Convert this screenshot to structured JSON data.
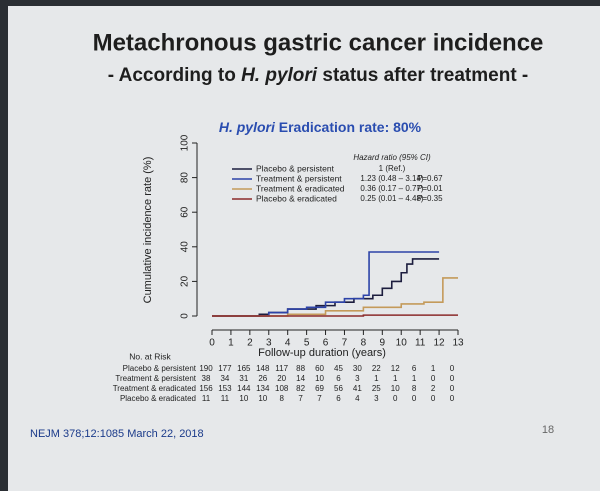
{
  "chart_data": {
    "type": "step",
    "title": "Metachronous gastric cancer incidence",
    "subtitle": [
      "- According to ",
      "H. pylori",
      " status after treatment -"
    ],
    "chart_title": [
      "H. pylori",
      " Eradication rate: 80%"
    ],
    "y_label": "Cumulative incidence rate (%)",
    "x_label": "Follow-up duration (years)",
    "xlim": [
      0,
      13
    ],
    "xticks": [
      0,
      1,
      2,
      3,
      4,
      5,
      6,
      7,
      8,
      9,
      10,
      11,
      12,
      13
    ],
    "ylim": [
      0,
      100
    ],
    "yticks": [
      0,
      20,
      40,
      60,
      80,
      100
    ],
    "grid": false,
    "hr_header": "Hazard ratio (95% CI)",
    "series": [
      {
        "name": "Placebo & persistent",
        "color": "#1c1d3e",
        "hr": "1 (Ref.)",
        "x": [
          0,
          2.5,
          2.5,
          3,
          3,
          4,
          4,
          5.5,
          5.5,
          6.5,
          6.5,
          7.5,
          7.5,
          8.5,
          8.5,
          9,
          9,
          9.5,
          9.5,
          10,
          10,
          10.3,
          10.3,
          10.6,
          10.6,
          12
        ],
        "values": [
          0,
          0,
          1,
          1,
          2,
          2,
          4,
          4,
          6,
          6,
          8,
          8,
          10,
          10,
          12,
          12,
          16,
          16,
          20,
          20,
          25,
          25,
          30,
          30,
          33,
          33
        ]
      },
      {
        "name": "Treatment & persistent",
        "color": "#2d43a8",
        "hr": "1.23 (0.48 – 3.14)",
        "p": "P=0.67",
        "x": [
          0,
          3,
          3,
          4,
          4,
          5,
          5,
          6,
          6,
          7,
          7,
          8,
          8,
          8.3,
          8.3,
          12
        ],
        "values": [
          0,
          0,
          2,
          2,
          4,
          4,
          5,
          5,
          8,
          8,
          10,
          10,
          12,
          12,
          37,
          37
        ]
      },
      {
        "name": "Treatment & eradicated",
        "color": "#c49a5a",
        "hr": "0.36 (0.17 – 0.77)",
        "p": "P=0.01",
        "x": [
          0,
          4,
          4,
          6,
          6,
          8,
          8,
          10,
          10,
          11.2,
          11.2,
          12.2,
          12.2,
          13
        ],
        "values": [
          0,
          0,
          1,
          1,
          3,
          3,
          5,
          5,
          7,
          7,
          8,
          8,
          22,
          22
        ]
      },
      {
        "name": "Placebo & eradicated",
        "color": "#8b2a2a",
        "hr": "0.25 (0.01 – 4.48)",
        "p": "P=0.35",
        "x": [
          0,
          8,
          8,
          13
        ],
        "values": [
          0,
          0,
          0.5,
          0.5
        ]
      }
    ],
    "at_risk": {
      "title": "No. at Risk",
      "rows": [
        {
          "name": "Placebo & persistent",
          "values": [
            "190",
            "177",
            "165",
            "148",
            "117",
            "88",
            "60",
            "45",
            "30",
            "22",
            "12",
            "6",
            "1",
            "0"
          ]
        },
        {
          "name": "Treatment & persistent",
          "values": [
            "38",
            "34",
            "31",
            "26",
            "20",
            "14",
            "10",
            "6",
            "3",
            "1",
            "1",
            "1",
            "0",
            "0"
          ]
        },
        {
          "name": "Treatment & eradicated",
          "values": [
            "156",
            "153",
            "144",
            "134",
            "108",
            "82",
            "69",
            "56",
            "41",
            "25",
            "10",
            "8",
            "2",
            "0"
          ]
        },
        {
          "name": "Placebo & eradicated",
          "values": [
            "11",
            "11",
            "10",
            "10",
            "8",
            "7",
            "7",
            "6",
            "4",
            "3",
            "0",
            "0",
            "0",
            "0"
          ]
        }
      ]
    },
    "source": "NEJM 378;12:1085 March 22, 2018",
    "page_number": "18"
  }
}
